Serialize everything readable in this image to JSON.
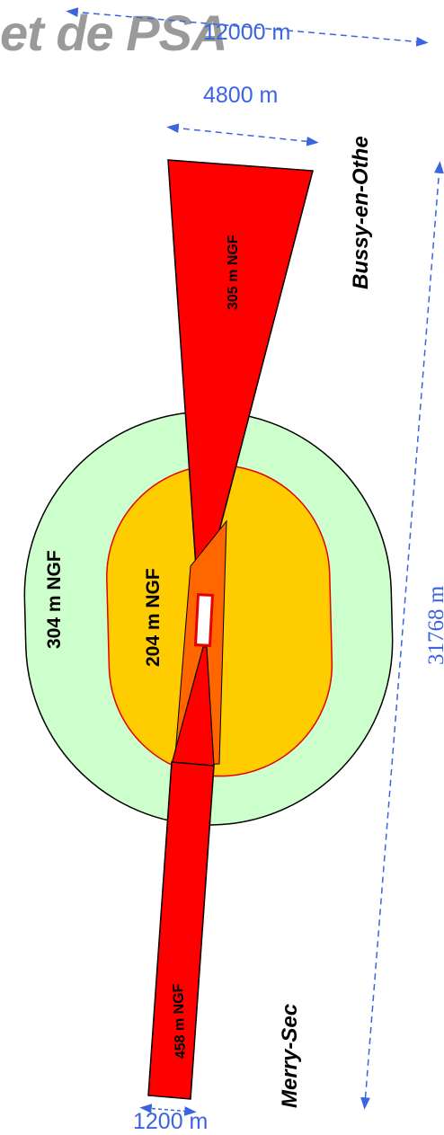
{
  "title_fragment": "et de PSA",
  "dimensions": {
    "width_top": "12000 m",
    "width_cone": "4800 m",
    "length_total": "31768 m",
    "width_bottom": "1200 m"
  },
  "places": {
    "north": "Bussy-en-Othe",
    "south": "Merry-Sec"
  },
  "zones": {
    "outer": "304 m NGF",
    "inner": "204 m NGF",
    "north_cone": "305 m NGF",
    "south_strip": "458 m NGF"
  },
  "colors": {
    "outer_fill": "#ccffcc",
    "inner_fill": "#ffcc00",
    "cone_fill": "#ff0000",
    "center_fill": "#ff8000",
    "dimension_line": "#3a64e0"
  }
}
